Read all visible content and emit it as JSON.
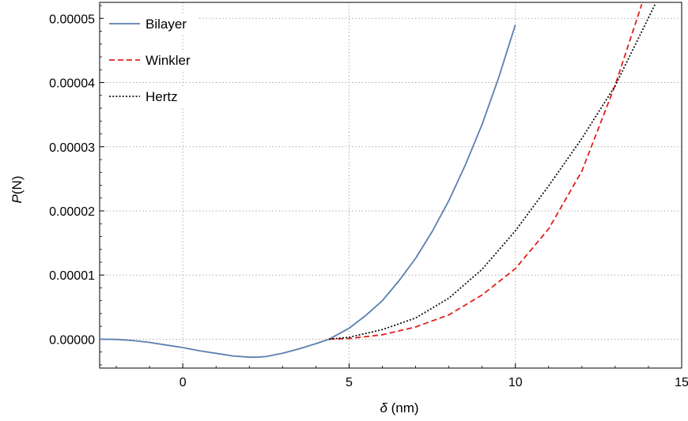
{
  "chart_data": {
    "type": "line",
    "xlabel": {
      "symbol": "δ",
      "unit": " (nm)"
    },
    "ylabel": {
      "symbol": "P",
      "unit": "(N)"
    },
    "xlim": [
      -2.5,
      15
    ],
    "ylim": [
      -4.5e-06,
      5.25e-05
    ],
    "x_ticks": [
      {
        "value": 0,
        "label": "0"
      },
      {
        "value": 5,
        "label": "5"
      },
      {
        "value": 10,
        "label": "10"
      },
      {
        "value": 15,
        "label": "15"
      }
    ],
    "y_ticks": [
      {
        "value": 0,
        "label": "0.00000"
      },
      {
        "value": 1e-05,
        "label": "0.00001"
      },
      {
        "value": 2e-05,
        "label": "0.00002"
      },
      {
        "value": 3e-05,
        "label": "0.00003"
      },
      {
        "value": 4e-05,
        "label": "0.00004"
      },
      {
        "value": 5e-05,
        "label": "0.00005"
      }
    ],
    "grid": true,
    "legend_position": "top-left",
    "series": [
      {
        "name": "Bilayer",
        "color": "#5b7fb0",
        "dash": "solid",
        "x": [
          -2.5,
          -2,
          -1.5,
          -1,
          -0.5,
          0,
          0.5,
          1,
          1.5,
          2,
          2.25,
          2.5,
          3,
          3.5,
          4,
          4.4,
          5,
          5.5,
          6,
          6.5,
          7,
          7.5,
          8,
          8.5,
          9,
          9.5,
          10
        ],
        "y": [
          0,
          -3e-08,
          -2e-07,
          -5e-07,
          -9e-07,
          -1.3e-06,
          -1.8e-06,
          -2.2e-06,
          -2.6e-06,
          -2.8e-06,
          -2.8e-06,
          -2.7e-06,
          -2.2e-06,
          -1.5e-06,
          -7e-07,
          0,
          1.7e-06,
          3.7e-06,
          6e-06,
          9.1e-06,
          1.26e-05,
          1.68e-05,
          2.16e-05,
          2.72e-05,
          3.35e-05,
          4.08e-05,
          4.9e-05
        ]
      },
      {
        "name": "Winkler",
        "color": "#e0201b",
        "dash": "dashed",
        "x": [
          4.4,
          5,
          6,
          7,
          8,
          9,
          10,
          11,
          12,
          13,
          13.8
        ],
        "y": [
          0,
          1e-07,
          7e-07,
          1.9e-06,
          3.8e-06,
          6.9e-06,
          1.1e-05,
          1.72e-05,
          2.62e-05,
          3.96e-05,
          5.22e-05
        ]
      },
      {
        "name": "Hertz",
        "color": "#111111",
        "dash": "dotted",
        "x": [
          4.4,
          5,
          6,
          7,
          8,
          9,
          10,
          11,
          12,
          13,
          14.2
        ],
        "y": [
          0,
          3e-07,
          1.5e-06,
          3.3e-06,
          6.4e-06,
          1.09e-05,
          1.69e-05,
          2.39e-05,
          3.13e-05,
          3.95e-05,
          5.22e-05
        ]
      }
    ]
  }
}
